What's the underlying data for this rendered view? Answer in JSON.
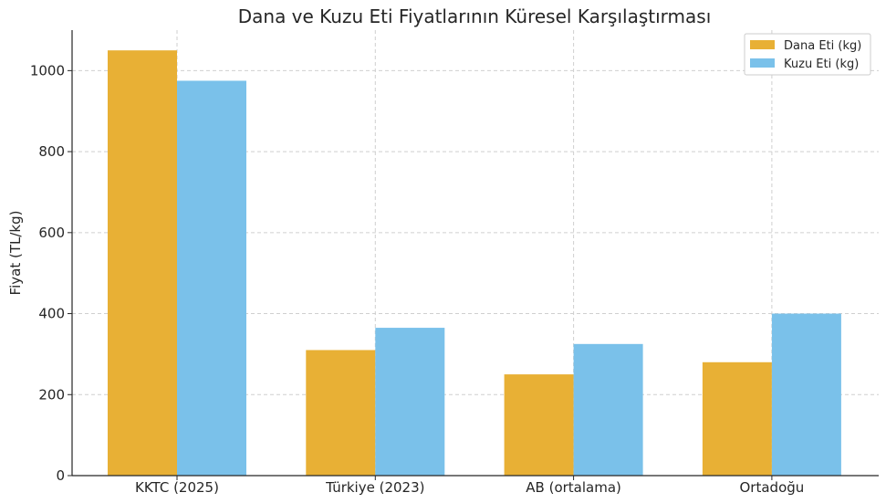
{
  "chart_data": {
    "type": "bar",
    "title": "Dana ve Kuzu Eti Fiyatlarının Küresel Karşılaştırması",
    "xlabel": "",
    "ylabel": "Fiyat (TL/kg)",
    "categories": [
      "KKTC (2025)",
      "Türkiye (2023)",
      "AB (ortalama)",
      "Ortadoğu"
    ],
    "series": [
      {
        "name": "Dana Eti (kg)",
        "values": [
          1050,
          310,
          250,
          280
        ],
        "color": "#E8B035"
      },
      {
        "name": "Kuzu Eti (kg)",
        "values": [
          975,
          365,
          325,
          400
        ],
        "color": "#7AC1EA"
      }
    ],
    "ylim": [
      0,
      1100
    ],
    "yticks": [
      "0",
      "200",
      "400",
      "600",
      "800",
      "1000"
    ],
    "grid": true,
    "legend_position": "top-right"
  }
}
